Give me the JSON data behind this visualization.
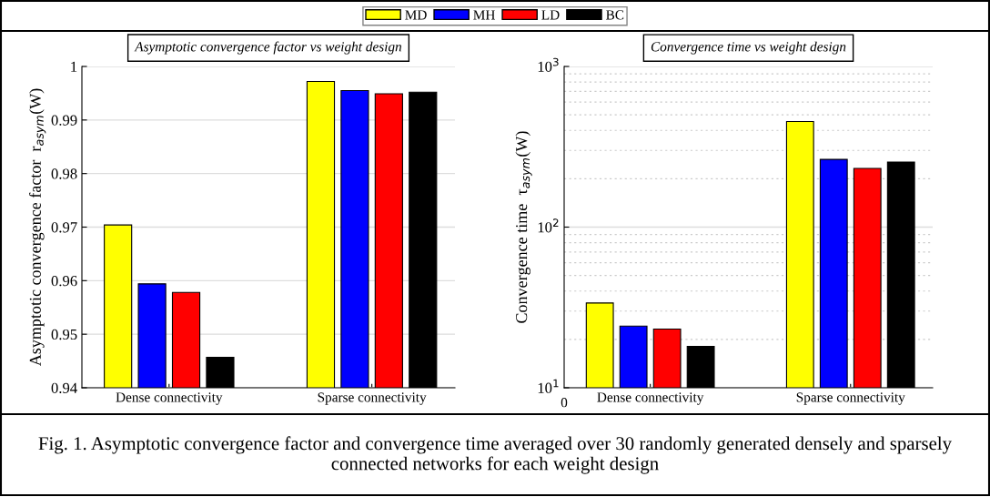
{
  "chart_data": [
    {
      "type": "bar",
      "title": "Asymptotic convergence factor vs weight design",
      "ylabel": "Asymptotic convergence factor  r$_{asym}$(W)",
      "categories": [
        "Dense connectivity",
        "Sparse connectivity"
      ],
      "series": [
        {
          "name": "MD",
          "color": "#ffff00",
          "values": [
            0.9704,
            0.9972
          ]
        },
        {
          "name": "MH",
          "color": "#0000ff",
          "values": [
            0.9594,
            0.9955
          ]
        },
        {
          "name": "LD",
          "color": "#ff0000",
          "values": [
            0.9578,
            0.9949
          ]
        },
        {
          "name": "BC",
          "color": "#000000",
          "values": [
            0.9457,
            0.9952
          ]
        }
      ],
      "ylim": [
        0.94,
        1
      ],
      "yticks": [
        0.94,
        0.95,
        0.96,
        0.97,
        0.98,
        0.99,
        1
      ],
      "grid": "y",
      "legend": "top",
      "annotations": [
        "Fig. 1. Asymptotic convergence factor and convergence time averaged over 30 randomly generated densely and sparsely connected networks for each weight design"
      ]
    },
    {
      "type": "bar",
      "title": "Convergence time vs weight design",
      "ylabel": "Convergence time  τ$_{asym}$(W)",
      "categories": [
        "Dense connectivity",
        "Sparse connectivity"
      ],
      "series": [
        {
          "name": "MD",
          "color": "#ffff00",
          "values": [
            33.7,
            454
          ]
        },
        {
          "name": "MH",
          "color": "#0000ff",
          "values": [
            24.2,
            264
          ]
        },
        {
          "name": "LD",
          "color": "#ff0000",
          "values": [
            23.2,
            232
          ]
        },
        {
          "name": "BC",
          "color": "#000000",
          "values": [
            18.1,
            254
          ]
        }
      ],
      "log": true,
      "ylim": [
        10,
        1000
      ],
      "yticks": [
        {
          "value": 10,
          "label": "10$^{1}$"
        },
        {
          "value": 100,
          "label": "10$^{2}$"
        },
        {
          "value": 1000,
          "label": "10$^{3}$"
        }
      ],
      "grid": "y",
      "annotations": [
        "0"
      ]
    }
  ]
}
